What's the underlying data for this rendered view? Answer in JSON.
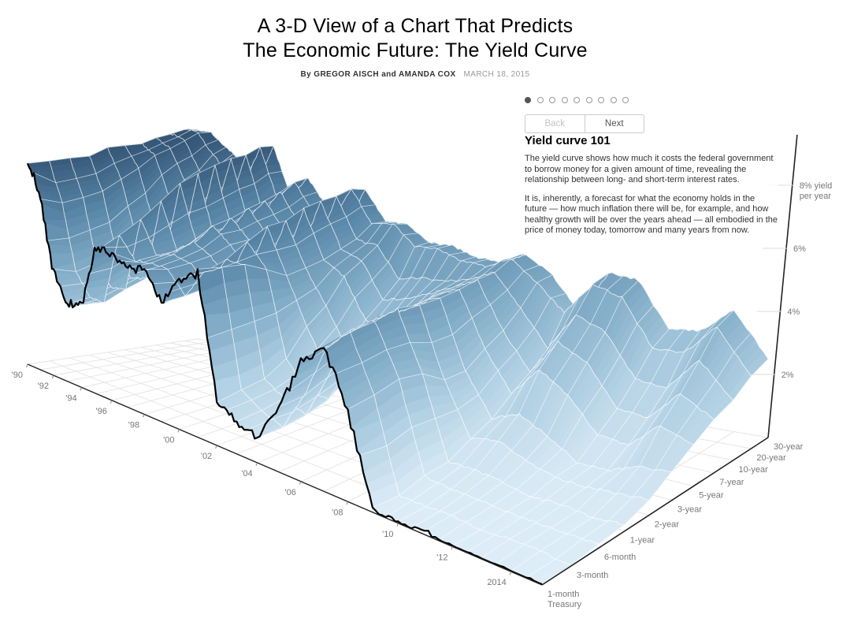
{
  "page": {
    "title_line1": "A 3-D View of a Chart That Predicts",
    "title_line2": "The Economic Future: The Yield Curve",
    "byline": "By GREGOR AISCH and AMANDA COX",
    "date": "MARCH 18, 2015"
  },
  "stepper": {
    "dot_count": 9,
    "active_dot": 0,
    "back_label": "Back",
    "next_label": "Next"
  },
  "panel": {
    "heading": "Yield curve 101",
    "paragraphs": [
      "The yield curve shows how much it costs the federal government to borrow money for a given amount of time, revealing the relationship between long- and short-term interest rates.",
      "It is, inherently, a forecast for what the economy holds in the future — how much inflation there will be, for example, and how healthy growth will be over the years ahead — all embodied in the price of money today, tomorrow and many years from now."
    ]
  },
  "colors": {
    "surface_low": "#deedf7",
    "surface_high": "#2b4865",
    "front_line": "#000000",
    "axis": "#222222",
    "floor_grid": "#e4e4e4",
    "tick_label": "#777777"
  },
  "chart_data": {
    "type": "surface",
    "description": "U.S. Treasury yield curve (yield in percent per year) by maturity and time, 1990 through early 2015",
    "ylim": [
      0,
      9.6
    ],
    "time_ticks": {
      "years": [
        1990,
        1992,
        1994,
        1996,
        1998,
        2000,
        2002,
        2004,
        2006,
        2008,
        2010,
        2012,
        2014
      ],
      "labels": [
        "'90",
        "'92",
        "'94",
        "'96",
        "'98",
        "'00",
        "'02",
        "'04",
        "'06",
        "'08",
        "'10",
        "'12",
        "2014"
      ]
    },
    "yield_ticks": {
      "values": [
        2,
        4,
        6,
        8
      ],
      "labels": [
        "2%",
        "4%",
        "6%",
        "8% yield"
      ],
      "unit_line2": "per year"
    },
    "maturities": [
      "1-month",
      "3-month",
      "6-month",
      "1-year",
      "2-year",
      "3-year",
      "5-year",
      "7-year",
      "10-year",
      "20-year",
      "30-year"
    ],
    "maturity_note": "Treasury",
    "years": [
      1990,
      1991,
      1992,
      1993,
      1994,
      1995,
      1996,
      1997,
      1998,
      1999,
      2000,
      2001,
      2002,
      2003,
      2004,
      2005,
      2006,
      2007,
      2008,
      2009,
      2010,
      2011,
      2012,
      2013,
      2014,
      2015
    ],
    "values": [
      [
        8.2,
        7.9,
        7.9,
        7.9,
        8.1,
        8.1,
        8.1,
        8.2,
        8.3,
        8.4,
        8.3
      ],
      [
        6.7,
        6.4,
        6.5,
        6.6,
        7.0,
        7.3,
        7.7,
        7.9,
        8.1,
        8.3,
        8.2
      ],
      [
        4.0,
        3.9,
        4.1,
        4.3,
        5.0,
        5.4,
        6.2,
        6.7,
        7.0,
        7.5,
        7.7
      ],
      [
        3.0,
        3.1,
        3.3,
        3.5,
        4.1,
        4.4,
        5.2,
        5.6,
        6.3,
        6.9,
        7.2
      ],
      [
        3.1,
        3.1,
        3.4,
        3.7,
        4.3,
        4.6,
        5.2,
        5.5,
        5.9,
        6.4,
        6.3
      ],
      [
        5.7,
        5.9,
        6.3,
        6.8,
        7.3,
        7.5,
        7.7,
        7.8,
        7.8,
        8.0,
        7.9
      ],
      [
        5.5,
        5.1,
        5.1,
        5.1,
        5.2,
        5.2,
        5.4,
        5.6,
        5.7,
        6.1,
        6.1
      ],
      [
        5.3,
        5.2,
        5.3,
        5.6,
        6.0,
        6.1,
        6.3,
        6.4,
        6.6,
        6.8,
        6.8
      ],
      [
        5.5,
        5.2,
        5.2,
        5.2,
        5.4,
        5.4,
        5.4,
        5.5,
        5.5,
        5.8,
        5.8
      ],
      [
        4.4,
        4.4,
        4.5,
        4.5,
        4.6,
        4.6,
        4.6,
        4.7,
        4.7,
        5.4,
        5.1
      ],
      [
        5.5,
        5.5,
        5.7,
        6.1,
        6.4,
        6.4,
        6.6,
        6.7,
        6.7,
        6.8,
        6.6
      ],
      [
        6.0,
        5.9,
        5.7,
        5.3,
        4.8,
        4.8,
        4.9,
        5.1,
        5.2,
        5.6,
        5.5
      ],
      [
        1.7,
        1.7,
        1.8,
        2.2,
        3.1,
        3.6,
        4.4,
        4.8,
        5.1,
        5.7,
        5.5
      ],
      [
        1.2,
        1.2,
        1.3,
        1.4,
        1.7,
        2.2,
        3.0,
        3.5,
        4.0,
        5.0,
        4.9
      ],
      [
        0.9,
        0.9,
        1.0,
        1.2,
        1.8,
        2.2,
        3.2,
        3.7,
        4.2,
        5.0,
        4.9
      ],
      [
        2.2,
        2.3,
        2.6,
        2.8,
        3.2,
        3.4,
        3.7,
        4.0,
        4.2,
        4.7,
        4.6
      ],
      [
        4.2,
        4.3,
        4.5,
        4.5,
        4.4,
        4.4,
        4.4,
        4.4,
        4.4,
        4.6,
        4.5
      ],
      [
        5.0,
        5.1,
        5.1,
        5.1,
        4.9,
        4.8,
        4.8,
        4.8,
        4.8,
        5.0,
        4.9
      ],
      [
        3.1,
        3.2,
        3.3,
        3.1,
        2.5,
        2.5,
        2.9,
        3.2,
        3.7,
        4.3,
        4.3
      ],
      [
        0.1,
        0.1,
        0.3,
        0.4,
        0.8,
        1.1,
        1.6,
        2.0,
        2.5,
        3.4,
        3.1
      ],
      [
        0.0,
        0.1,
        0.2,
        0.4,
        1.0,
        1.5,
        2.6,
        3.2,
        3.8,
        4.5,
        4.6
      ],
      [
        0.1,
        0.1,
        0.2,
        0.3,
        0.6,
        1.0,
        2.0,
        2.7,
        3.4,
        4.2,
        4.5
      ],
      [
        0.0,
        0.0,
        0.1,
        0.1,
        0.3,
        0.4,
        0.9,
        1.4,
        2.0,
        2.7,
        3.0
      ],
      [
        0.0,
        0.1,
        0.1,
        0.2,
        0.3,
        0.4,
        0.8,
        1.3,
        1.9,
        2.7,
        3.1
      ],
      [
        0.0,
        0.1,
        0.1,
        0.1,
        0.4,
        0.8,
        1.7,
        2.3,
        3.0,
        3.7,
        3.9
      ],
      [
        0.0,
        0.0,
        0.1,
        0.2,
        0.5,
        0.9,
        1.3,
        1.7,
        1.9,
        2.3,
        2.5
      ]
    ]
  }
}
